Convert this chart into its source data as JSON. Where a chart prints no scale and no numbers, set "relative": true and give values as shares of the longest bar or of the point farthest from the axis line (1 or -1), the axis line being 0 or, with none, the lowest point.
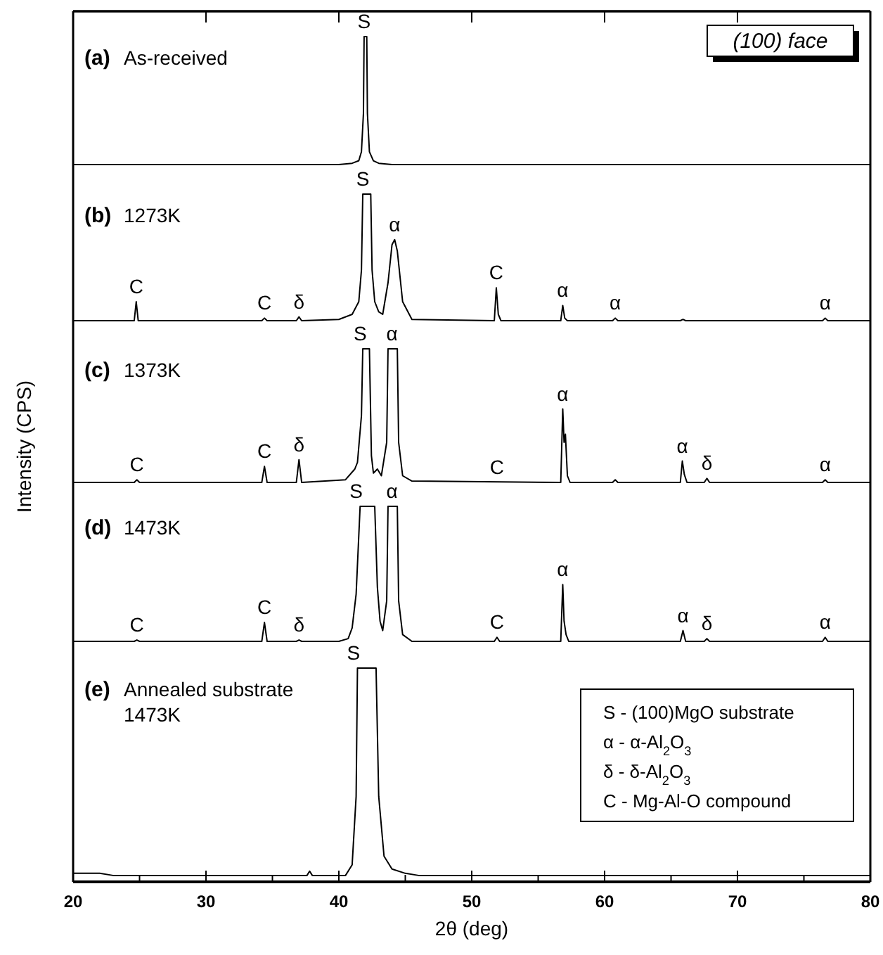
{
  "chart_data": [
    {
      "type": "line",
      "title": "(a)",
      "subtitle": "As-received",
      "xlim": [
        20,
        80
      ],
      "xticks": [
        20,
        30,
        40,
        50,
        60,
        70,
        80
      ],
      "relative": true,
      "tick_labels": false,
      "series": [
        {
          "color": "#000000",
          "x": [
            20,
            40,
            41,
            41.5,
            41.7,
            41.85,
            41.9,
            42.1,
            42.15,
            42.3,
            42.6,
            43,
            44,
            80
          ],
          "values": [
            0,
            0,
            0.01,
            0.03,
            0.1,
            0.4,
            1,
            1,
            0.4,
            0.1,
            0.03,
            0.01,
            0,
            0
          ]
        }
      ],
      "annotations": [
        {
          "text": "S",
          "x": 41.9,
          "y": 1
        },
        "(100) face"
      ]
    },
    {
      "type": "line",
      "title": "(b)",
      "subtitle": "1273K",
      "xlim": [
        20,
        80
      ],
      "relative": true,
      "series": [
        {
          "color": "#000000",
          "x": [
            20,
            24.6,
            24.75,
            24.9,
            34.2,
            34.4,
            34.6,
            36.8,
            37,
            37.2,
            40,
            41,
            41.5,
            41.7,
            41.8,
            42.4,
            42.5,
            42.7,
            43,
            43.3,
            43.7,
            44,
            44.2,
            44.4,
            44.8,
            45.5,
            51.7,
            51.85,
            52,
            52.2,
            56.7,
            56.85,
            57.0,
            57.2,
            60.6,
            60.8,
            61,
            65.7,
            65.9,
            66.1,
            76.4,
            76.6,
            76.8,
            80
          ],
          "values": [
            0,
            0,
            0.15,
            0,
            0,
            0.02,
            0,
            0,
            0.03,
            0,
            0.01,
            0.05,
            0.15,
            0.4,
            1,
            1,
            0.4,
            0.15,
            0.07,
            0.05,
            0.3,
            0.6,
            0.64,
            0.55,
            0.15,
            0.01,
            0,
            0.26,
            0.05,
            0,
            0,
            0.12,
            0.02,
            0,
            0,
            0.02,
            0,
            0,
            0.01,
            0,
            0,
            0.02,
            0,
            0
          ]
        }
      ],
      "annotations": [
        {
          "text": "C",
          "x": 24.75,
          "y": 0.15
        },
        {
          "text": "C",
          "x": 34.4,
          "y": 0.02
        },
        {
          "text": "δ",
          "x": 37,
          "y": 0.03
        },
        {
          "text": "S",
          "x": 41.8,
          "y": 1
        },
        {
          "text": "α",
          "x": 44.2,
          "y": 0.64
        },
        {
          "text": "C",
          "x": 51.85,
          "y": 0.26
        },
        {
          "text": "α",
          "x": 56.85,
          "y": 0.12
        },
        {
          "text": "α",
          "x": 60.8,
          "y": 0.02
        },
        {
          "text": "α",
          "x": 76.6,
          "y": 0.02
        }
      ]
    },
    {
      "type": "line",
      "title": "(c)",
      "subtitle": "1373K",
      "ylabel": "Intensity (CPS)",
      "xlim": [
        20,
        80
      ],
      "relative": true,
      "series": [
        {
          "color": "#000000",
          "x": [
            20,
            24.6,
            24.8,
            25,
            34.2,
            34.4,
            34.6,
            36.8,
            37,
            37.2,
            40.5,
            41.2,
            41.4,
            41.7,
            41.8,
            42.3,
            42.45,
            42.6,
            42.9,
            43.2,
            43.6,
            43.7,
            44.4,
            44.5,
            44.8,
            45.5,
            56.7,
            56.85,
            56.95,
            57.05,
            57.2,
            57.4,
            60.6,
            60.8,
            61,
            65.7,
            65.85,
            66.0,
            66.2,
            67.5,
            67.7,
            67.9,
            76.4,
            76.6,
            76.8,
            80
          ],
          "values": [
            0,
            0,
            0.02,
            0,
            0,
            0.12,
            0,
            0,
            0.17,
            0,
            0.02,
            0.1,
            0.15,
            0.5,
            1,
            1,
            0.2,
            0.07,
            0.1,
            0.05,
            0.3,
            1,
            1,
            0.3,
            0.05,
            0.01,
            0,
            0.55,
            0.3,
            0.36,
            0.05,
            0,
            0,
            0.02,
            0,
            0,
            0.16,
            0.06,
            0,
            0,
            0.03,
            0,
            0,
            0.02,
            0,
            0
          ]
        }
      ],
      "annotations": [
        {
          "text": "C",
          "x": 24.8,
          "y": 0.02
        },
        {
          "text": "C",
          "x": 34.4,
          "y": 0.12
        },
        {
          "text": "δ",
          "x": 37,
          "y": 0.17
        },
        {
          "text": "S",
          "x": 41.6,
          "y": 1
        },
        {
          "text": "α",
          "x": 44,
          "y": 1
        },
        {
          "text": "C",
          "x": 51.9,
          "y": 0
        },
        {
          "text": "α",
          "x": 56.85,
          "y": 0.55
        },
        {
          "text": "α",
          "x": 65.85,
          "y": 0.16
        },
        {
          "text": "δ",
          "x": 67.7,
          "y": 0.03
        },
        {
          "text": "α",
          "x": 76.6,
          "y": 0.02
        }
      ]
    },
    {
      "type": "line",
      "title": "(d)",
      "subtitle": "1473K",
      "xlim": [
        20,
        80
      ],
      "relative": true,
      "series": [
        {
          "color": "#000000",
          "x": [
            20,
            24.6,
            24.8,
            25,
            34.2,
            34.4,
            34.6,
            36.8,
            37,
            37.2,
            40,
            40.7,
            41.0,
            41.3,
            41.6,
            42.7,
            42.9,
            43.1,
            43.3,
            43.6,
            43.7,
            44.4,
            44.5,
            44.8,
            45.5,
            51.7,
            51.9,
            52.1,
            56.7,
            56.85,
            56.95,
            57.1,
            57.3,
            65.7,
            65.9,
            66.1,
            67.5,
            67.7,
            67.9,
            76.4,
            76.6,
            76.8,
            80
          ],
          "values": [
            0,
            0,
            0.01,
            0,
            0,
            0.14,
            0,
            0,
            0.01,
            0,
            0,
            0.02,
            0.1,
            0.35,
            1,
            1,
            0.4,
            0.15,
            0.08,
            0.3,
            1,
            1,
            0.3,
            0.05,
            0,
            0,
            0.03,
            0,
            0,
            0.42,
            0.15,
            0.05,
            0,
            0,
            0.08,
            0,
            0,
            0.02,
            0,
            0,
            0.03,
            0,
            0
          ]
        }
      ],
      "annotations": [
        {
          "text": "C",
          "x": 24.8,
          "y": 0.01
        },
        {
          "text": "C",
          "x": 34.4,
          "y": 0.14
        },
        {
          "text": "δ",
          "x": 37,
          "y": 0.01
        },
        {
          "text": "S",
          "x": 41.3,
          "y": 1
        },
        {
          "text": "α",
          "x": 44,
          "y": 1
        },
        {
          "text": "C",
          "x": 51.9,
          "y": 0.03
        },
        {
          "text": "α",
          "x": 56.85,
          "y": 0.42
        },
        {
          "text": "α",
          "x": 65.9,
          "y": 0.08
        },
        {
          "text": "δ",
          "x": 67.7,
          "y": 0.02
        },
        {
          "text": "α",
          "x": 76.6,
          "y": 0.03
        }
      ]
    },
    {
      "type": "line",
      "title": "(e)",
      "subtitle": "Annealed substrate 1473K",
      "xlabel": "2θ (deg)",
      "xlim": [
        20,
        80
      ],
      "xticks": [
        20,
        {
          "value": 25,
          "label": null
        },
        30,
        {
          "value": 35,
          "label": null
        },
        40,
        {
          "value": 45,
          "label": null
        },
        50,
        {
          "value": 55,
          "label": null
        },
        60,
        {
          "value": 65,
          "label": null
        },
        70,
        {
          "value": 75,
          "label": null
        },
        80
      ],
      "relative": true,
      "series": [
        {
          "color": "#000000",
          "x": [
            20,
            20.5,
            22,
            23,
            37.6,
            37.8,
            38,
            40.5,
            41,
            41.3,
            41.4,
            42.8,
            43.0,
            43.4,
            44,
            45,
            46,
            80
          ],
          "values": [
            0.04,
            0.04,
            0.04,
            0.03,
            0.03,
            0.05,
            0.03,
            0.03,
            0.08,
            0.4,
            1,
            1,
            0.4,
            0.12,
            0.06,
            0.04,
            0.03,
            0.03
          ]
        }
      ],
      "annotations": [
        {
          "text": "S",
          "x": 41.1,
          "y": 1
        },
        "S - (100)MgO substrate",
        "α - α-Al$_{2}$O$_{3}$",
        "δ - δ-Al$_{2}$O$_{3}$",
        "C - Mg-Al-O compound"
      ]
    }
  ]
}
